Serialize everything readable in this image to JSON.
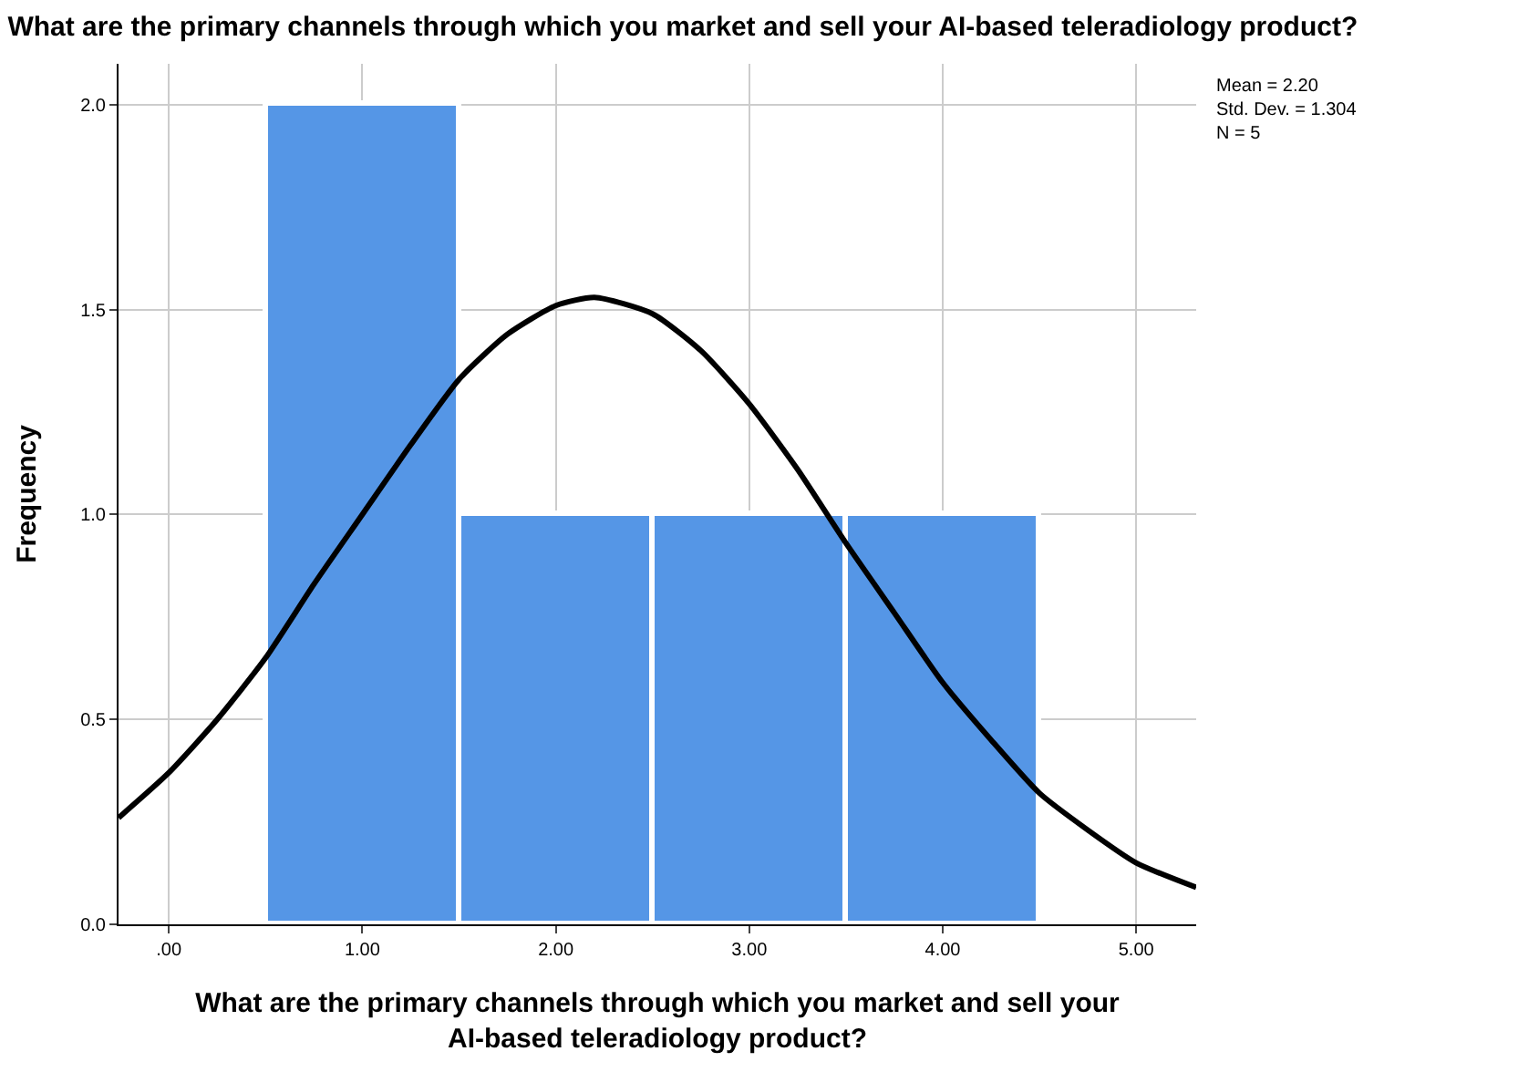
{
  "chart_data": {
    "type": "histogram",
    "title": "What are the primary channels through which you market and sell your AI-based teleradiology product?",
    "xlabel": "What are the primary channels through which you market and sell your\nAI-based teleradiology product?",
    "ylabel": "Frequency",
    "bins": [
      0.5,
      1.5,
      2.5,
      3.5,
      4.5
    ],
    "values": [
      2,
      1,
      1,
      1
    ],
    "color": "#5596e6",
    "series": [
      {
        "type": "line",
        "color": "#000000",
        "x": [
          -0.26,
          0,
          0.25,
          0.5,
          0.75,
          1,
          1.25,
          1.5,
          1.75,
          2,
          2.2,
          2.5,
          2.75,
          3,
          3.25,
          3.5,
          3.75,
          4,
          4.25,
          4.5,
          4.75,
          5,
          5.31
        ],
        "values": [
          0.26,
          0.37,
          0.5,
          0.65,
          0.83,
          1.0,
          1.17,
          1.33,
          1.44,
          1.51,
          1.53,
          1.49,
          1.4,
          1.27,
          1.11,
          0.93,
          0.76,
          0.59,
          0.45,
          0.32,
          0.23,
          0.15,
          0.09
        ]
      }
    ],
    "marker": "none",
    "xlim": [
      -0.26,
      5.31
    ],
    "ylim": [
      0,
      2.1
    ],
    "xticks": [
      {
        "value": 0,
        "label": ".00"
      },
      {
        "value": 1,
        "label": "1.00"
      },
      {
        "value": 2,
        "label": "2.00"
      },
      {
        "value": 3,
        "label": "3.00"
      },
      {
        "value": 4,
        "label": "4.00"
      },
      {
        "value": 5,
        "label": "5.00"
      }
    ],
    "yticks": [
      {
        "value": 0,
        "label": "0.0"
      },
      {
        "value": 0.5,
        "label": "0.5"
      },
      {
        "value": 1,
        "label": "1.0"
      },
      {
        "value": 1.5,
        "label": "1.5"
      },
      {
        "value": 2,
        "label": "2.0"
      }
    ],
    "grid": true,
    "annotations": [
      "Mean = 2.20",
      "Std. Dev. = 1.304",
      "N = 5"
    ]
  }
}
